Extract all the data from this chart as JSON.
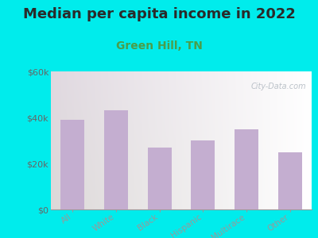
{
  "title": "Median per capita income in 2022",
  "subtitle": "Green Hill, TN",
  "categories": [
    "All",
    "White",
    "Black",
    "Hispanic",
    "Multirace",
    "Other"
  ],
  "values": [
    39000,
    43000,
    27000,
    30000,
    35000,
    25000
  ],
  "bar_color": "#c4aed0",
  "background_outer": "#00ecec",
  "ylim": [
    0,
    60000
  ],
  "yticks": [
    0,
    20000,
    40000,
    60000
  ],
  "ytick_labels": [
    "$0",
    "$20k",
    "$40k",
    "$60k"
  ],
  "title_fontsize": 13,
  "subtitle_fontsize": 10,
  "subtitle_color": "#4a9e4a",
  "tick_label_color": "#666666",
  "watermark": "City-Data.com",
  "bar_width": 0.55
}
